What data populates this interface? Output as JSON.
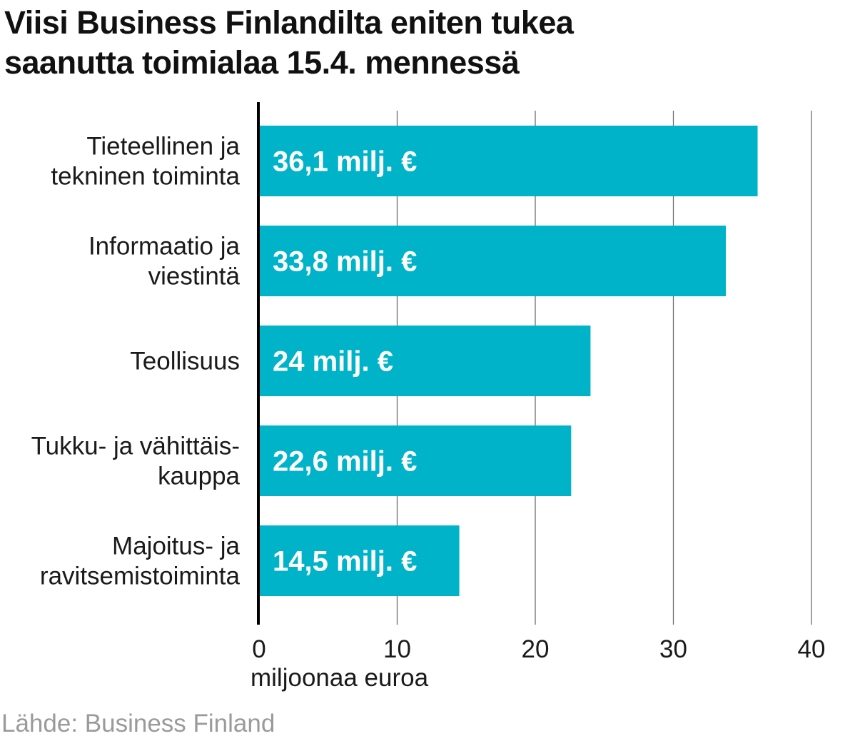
{
  "title_lines": [
    "Viisi Business Finlandilta eniten tukea",
    "saanutta toimialaa 15.4. mennessä"
  ],
  "source": "Lähde: Business Finland",
  "colors": {
    "bar": "#00b3c9",
    "grid": "#6e6e6e",
    "axis": "#000000"
  },
  "chart_data": {
    "type": "bar",
    "orientation": "horizontal",
    "title": "Viisi Business Finlandilta eniten tukea saanutta toimialaa 15.4. mennessä",
    "xlabel": "miljoonaa euroa",
    "ylabel": "",
    "xlim": [
      0,
      40
    ],
    "xticks": [
      0,
      10,
      20,
      30,
      40
    ],
    "grid": true,
    "categories": [
      [
        "Tieteellinen ja",
        "tekninen toiminta"
      ],
      [
        "Informaatio ja",
        "viestintä"
      ],
      [
        "Teollisuus"
      ],
      [
        "Tukku- ja vähittäis-",
        "kauppa"
      ],
      [
        "Majoitus- ja",
        "ravitsemistoiminta"
      ]
    ],
    "values": [
      36.1,
      33.8,
      24,
      22.6,
      14.5
    ],
    "data_labels": [
      "36,1 milj. €",
      "33,8 milj. €",
      "24 milj. €",
      "22,6 milj. €",
      "14,5 milj. €"
    ]
  }
}
